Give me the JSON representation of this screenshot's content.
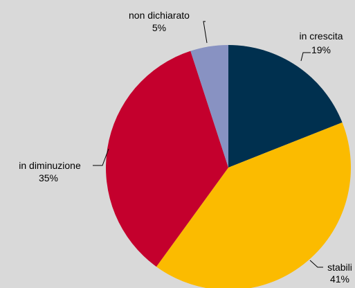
{
  "chart_data": {
    "type": "pie",
    "slices": [
      {
        "label": "in crescita",
        "value": 19,
        "value_label": "19%",
        "color": "#00304f"
      },
      {
        "label": "stabili",
        "value": 41,
        "value_label": "41%",
        "color": "#fbbb00"
      },
      {
        "label": "in diminuzione",
        "value": 35,
        "value_label": "35%",
        "color": "#c4002d"
      },
      {
        "label": "non dichiarato",
        "value": 5,
        "value_label": "5%",
        "color": "#8892c2"
      }
    ],
    "start": "12 o'clock",
    "direction": "clockwise",
    "legend": "none",
    "background_color": "#d9d9d9"
  }
}
